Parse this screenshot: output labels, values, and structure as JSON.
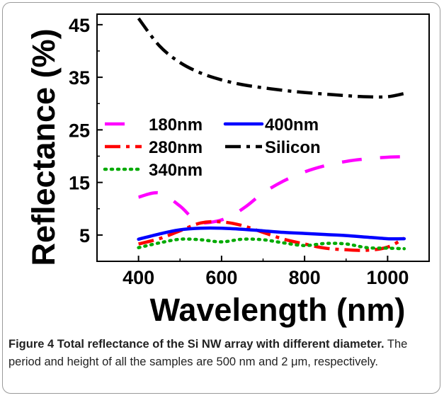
{
  "chart_data": {
    "type": "line",
    "xlabel": "Wavelength (nm)",
    "ylabel": "Reflectance (%)",
    "xlim": [
      300,
      1100
    ],
    "ylim": [
      0,
      47
    ],
    "xticks": [
      400,
      600,
      800,
      1000
    ],
    "yticks": [
      5,
      15,
      25,
      35,
      45
    ],
    "grid": false,
    "legend_position": "upper-left (inside)",
    "series": [
      {
        "name": "180nm",
        "color": "#ff00ff",
        "style": "dashed",
        "x": [
          400,
          450,
          500,
          540,
          580,
          620,
          660,
          700,
          750,
          800,
          850,
          900,
          950,
          1000,
          1040
        ],
        "y": [
          12.2,
          13.0,
          10.5,
          7.6,
          7.5,
          8.5,
          10.5,
          13.0,
          15.3,
          17.0,
          18.2,
          19.0,
          19.5,
          19.8,
          19.9
        ]
      },
      {
        "name": "280nm",
        "color": "#ff0000",
        "style": "dash-dot",
        "x": [
          400,
          450,
          500,
          550,
          600,
          650,
          700,
          750,
          800,
          850,
          900,
          950,
          1000,
          1040
        ],
        "y": [
          3.3,
          4.3,
          5.8,
          7.3,
          7.5,
          6.8,
          5.5,
          4.2,
          3.3,
          2.5,
          2.2,
          2.1,
          2.7,
          4.4
        ]
      },
      {
        "name": "340nm",
        "color": "#00aa00",
        "style": "dotted",
        "x": [
          400,
          450,
          500,
          550,
          600,
          650,
          700,
          750,
          800,
          850,
          900,
          950,
          1000,
          1040
        ],
        "y": [
          2.6,
          3.5,
          4.2,
          4.1,
          3.7,
          4.2,
          4.1,
          3.5,
          3.0,
          3.4,
          3.3,
          2.6,
          2.5,
          2.4
        ]
      },
      {
        "name": "400nm",
        "color": "#0000ff",
        "style": "solid",
        "x": [
          400,
          450,
          500,
          550,
          600,
          650,
          700,
          750,
          800,
          850,
          900,
          950,
          1000,
          1040
        ],
        "y": [
          4.2,
          5.2,
          6.0,
          6.3,
          6.3,
          6.1,
          5.8,
          5.5,
          5.3,
          5.1,
          4.9,
          4.6,
          4.3,
          4.3
        ]
      },
      {
        "name": "Silicon",
        "color": "#000000",
        "style": "dash-dot",
        "x": [
          400,
          450,
          500,
          550,
          600,
          650,
          700,
          750,
          800,
          850,
          900,
          950,
          1000,
          1040
        ],
        "y": [
          46.2,
          41.0,
          37.8,
          35.8,
          34.5,
          33.6,
          33.0,
          32.5,
          32.1,
          31.8,
          31.5,
          31.3,
          31.3,
          31.9
        ]
      }
    ]
  },
  "caption": {
    "label": "Figure 4",
    "title": "Total reflectance of the Si NW array with different diameter.",
    "text": "The period and height of all the samples are 500 nm and 2 μm, respectively."
  }
}
